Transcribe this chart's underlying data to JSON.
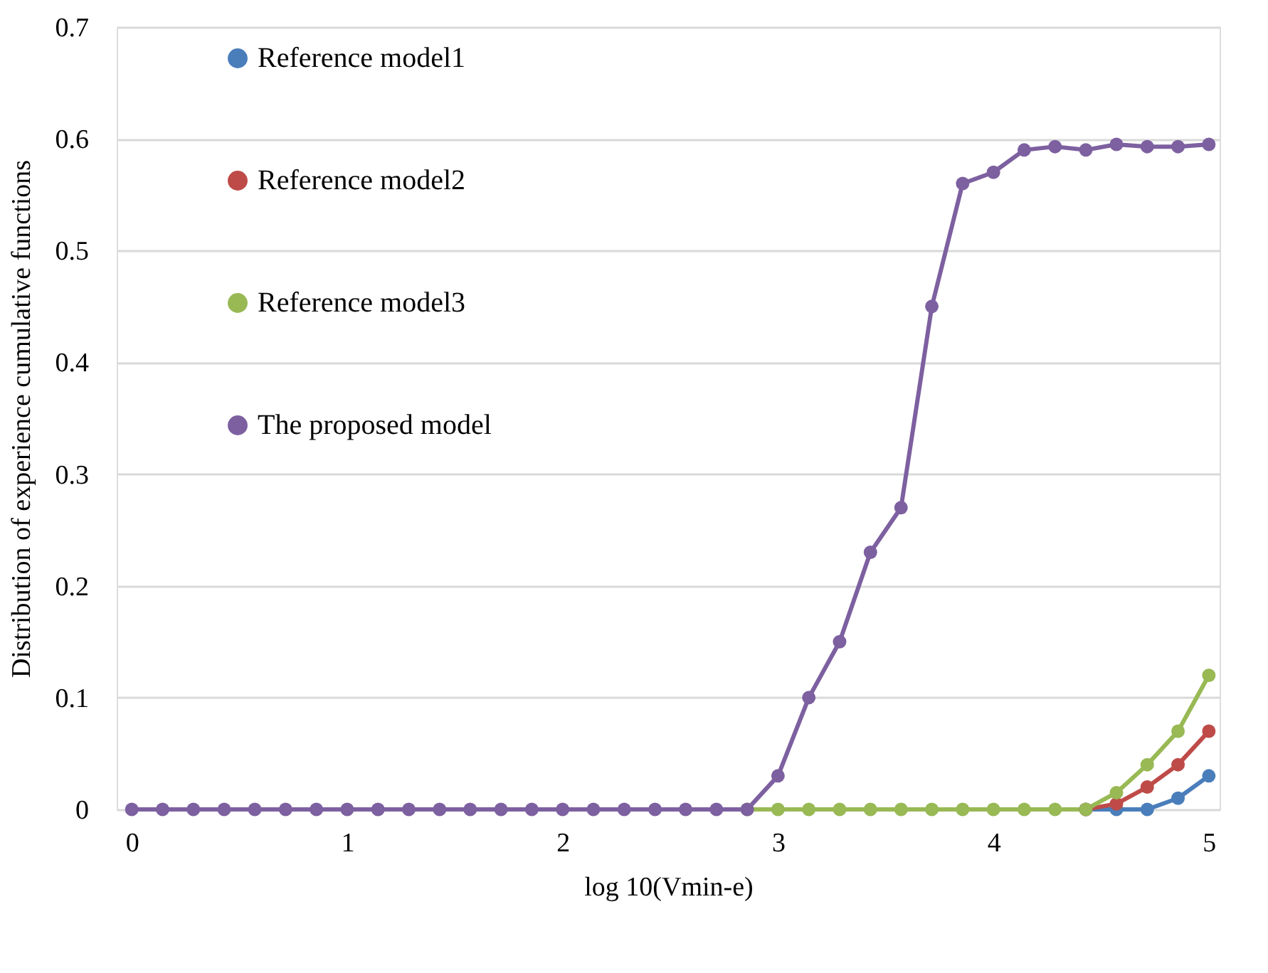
{
  "chart_data": {
    "type": "line",
    "xlabel": "log 10(Vmin-e)",
    "ylabel": "Distribution of experience cumulative functions",
    "x": [
      0,
      0.143,
      0.286,
      0.429,
      0.571,
      0.714,
      0.857,
      1,
      1.143,
      1.286,
      1.429,
      1.571,
      1.714,
      1.857,
      2,
      2.143,
      2.286,
      2.429,
      2.571,
      2.714,
      2.857,
      3,
      3.143,
      3.286,
      3.429,
      3.571,
      3.714,
      3.857,
      4,
      4.143,
      4.286,
      4.429,
      4.571,
      4.714,
      4.857,
      5
    ],
    "series": [
      {
        "name": "Reference model1",
        "color": "#4a7ebb",
        "values": [
          null,
          null,
          null,
          null,
          null,
          null,
          null,
          null,
          null,
          null,
          null,
          null,
          null,
          null,
          null,
          null,
          null,
          null,
          null,
          null,
          null,
          null,
          null,
          null,
          null,
          null,
          null,
          null,
          null,
          null,
          null,
          0,
          0,
          0,
          0.01,
          0.03
        ]
      },
      {
        "name": "Reference model2",
        "color": "#be4b48",
        "values": [
          null,
          null,
          null,
          null,
          null,
          null,
          null,
          null,
          null,
          null,
          null,
          null,
          null,
          null,
          null,
          null,
          null,
          null,
          null,
          null,
          null,
          null,
          null,
          null,
          null,
          null,
          null,
          null,
          null,
          null,
          null,
          0,
          0.005,
          0.02,
          0.04,
          0.07
        ]
      },
      {
        "name": "Reference model3",
        "color": "#98b954",
        "values": [
          null,
          null,
          null,
          null,
          null,
          null,
          null,
          null,
          null,
          null,
          null,
          null,
          null,
          null,
          null,
          null,
          null,
          null,
          null,
          null,
          0,
          0,
          0,
          0,
          0,
          0,
          0,
          0,
          0,
          0,
          0,
          0,
          0.015,
          0.04,
          0.07,
          0.12
        ]
      },
      {
        "name": "The proposed model",
        "color": "#7d60a0",
        "values": [
          0,
          0,
          0,
          0,
          0,
          0,
          0,
          0,
          0,
          0,
          0,
          0,
          0,
          0,
          0,
          0,
          0,
          0,
          0,
          0,
          0,
          0.03,
          0.1,
          0.15,
          0.23,
          0.27,
          0.45,
          0.56,
          0.57,
          0.59,
          0.593,
          0.59,
          0.595,
          0.593,
          0.593,
          0.595
        ]
      }
    ],
    "xlim": [
      -0.07,
      5.05
    ],
    "xticks": [
      0,
      1,
      2,
      3,
      4,
      5
    ],
    "ylim": [
      0,
      0.7
    ],
    "yticks": [
      {
        "value": 0,
        "label": "0"
      },
      0.1,
      0.2,
      0.3,
      0.4,
      0.5,
      0.6,
      0.7
    ],
    "grid": "y",
    "legend": "top left",
    "marker": "circle",
    "line_style": "solid"
  }
}
